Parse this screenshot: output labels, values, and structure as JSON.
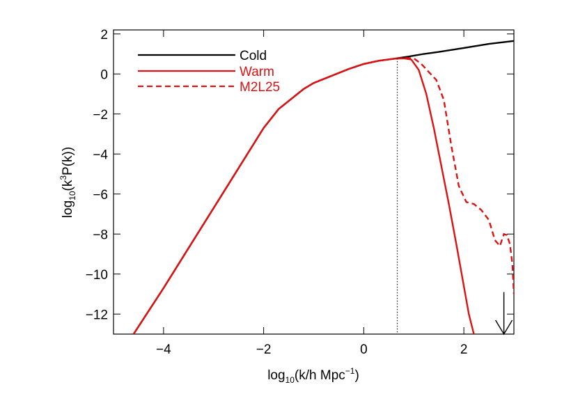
{
  "chart_data": {
    "type": "line",
    "xlabel": {
      "base": "log",
      "sub": "10",
      "rest": "(k/h Mpc",
      "sup": "−1",
      "close": ")"
    },
    "ylabel": {
      "base": "log",
      "sub": "10",
      "rest": "(k",
      "sup": "3",
      "close": "P(k))"
    },
    "xlim": [
      -5,
      3
    ],
    "ylim": [
      -13,
      2.2
    ],
    "x_ticks": [
      -4,
      -2,
      0,
      2
    ],
    "x_tick_labels": [
      "−4",
      "−2",
      "0",
      "2"
    ],
    "y_ticks": [
      2,
      0,
      -2,
      -4,
      -6,
      -8,
      -10,
      -12
    ],
    "y_tick_labels": [
      "2",
      "0",
      "−2",
      "−4",
      "−6",
      "−8",
      "−10",
      "−12"
    ],
    "legend_position": "top-left",
    "series": [
      {
        "name": "Cold",
        "color": "#000000",
        "dash": "solid",
        "x": [
          -4.6,
          -4,
          -3.5,
          -3,
          -2.5,
          -2,
          -1.7,
          -1.4,
          -1.2,
          -1.0,
          -0.6,
          -0.3,
          0,
          0.3,
          0.6,
          0.9,
          1.2,
          1.5,
          2,
          2.5,
          3
        ],
        "y": [
          -13,
          -10.7,
          -8.7,
          -6.7,
          -4.7,
          -2.7,
          -1.75,
          -1.15,
          -0.75,
          -0.45,
          -0.05,
          0.25,
          0.5,
          0.66,
          0.76,
          0.87,
          1.0,
          1.1,
          1.3,
          1.5,
          1.65
        ]
      },
      {
        "name": "Warm",
        "color": "#dd1111",
        "dash": "solid",
        "x": [
          -4.6,
          -4,
          -3.5,
          -3,
          -2.5,
          -2,
          -1.7,
          -1.4,
          -1.2,
          -1.0,
          -0.6,
          -0.3,
          0,
          0.3,
          0.6,
          0.8,
          0.95,
          1.1,
          1.25,
          1.4,
          1.55,
          1.7,
          1.85,
          2.0,
          2.1,
          2.2
        ],
        "y": [
          -13,
          -10.7,
          -8.7,
          -6.7,
          -4.7,
          -2.7,
          -1.75,
          -1.15,
          -0.75,
          -0.45,
          -0.05,
          0.25,
          0.5,
          0.66,
          0.76,
          0.78,
          0.72,
          0.2,
          -1.0,
          -2.7,
          -4.6,
          -6.5,
          -8.5,
          -10.6,
          -12.0,
          -13.0
        ]
      },
      {
        "name": "M2L25",
        "color": "#dd1111",
        "dash": "dashed",
        "x": [
          -4.6,
          -4,
          -3.5,
          -3,
          -2.5,
          -2,
          -1.7,
          -1.4,
          -1.2,
          -1.0,
          -0.6,
          -0.3,
          0,
          0.3,
          0.6,
          0.8,
          1.0,
          1.15,
          1.3,
          1.45,
          1.6,
          1.75,
          1.9,
          2.05,
          2.2,
          2.35,
          2.5,
          2.62,
          2.72,
          2.8,
          2.86,
          2.92,
          2.97,
          3.0
        ],
        "y": [
          -13,
          -10.7,
          -8.7,
          -6.7,
          -4.7,
          -2.7,
          -1.75,
          -1.15,
          -0.75,
          -0.45,
          -0.05,
          0.25,
          0.5,
          0.66,
          0.76,
          0.8,
          0.78,
          0.5,
          0.1,
          -0.3,
          -1.3,
          -3.6,
          -5.6,
          -6.4,
          -6.5,
          -6.8,
          -7.3,
          -8.3,
          -8.6,
          -8.0,
          -8.05,
          -8.5,
          -9.5,
          -11.0
        ]
      }
    ],
    "vline": {
      "x": 0.67,
      "color": "#000000",
      "style": "dotted"
    },
    "arrow": {
      "x": 2.8,
      "y_from": -10.9,
      "y_to": -13,
      "color": "#000000"
    }
  }
}
